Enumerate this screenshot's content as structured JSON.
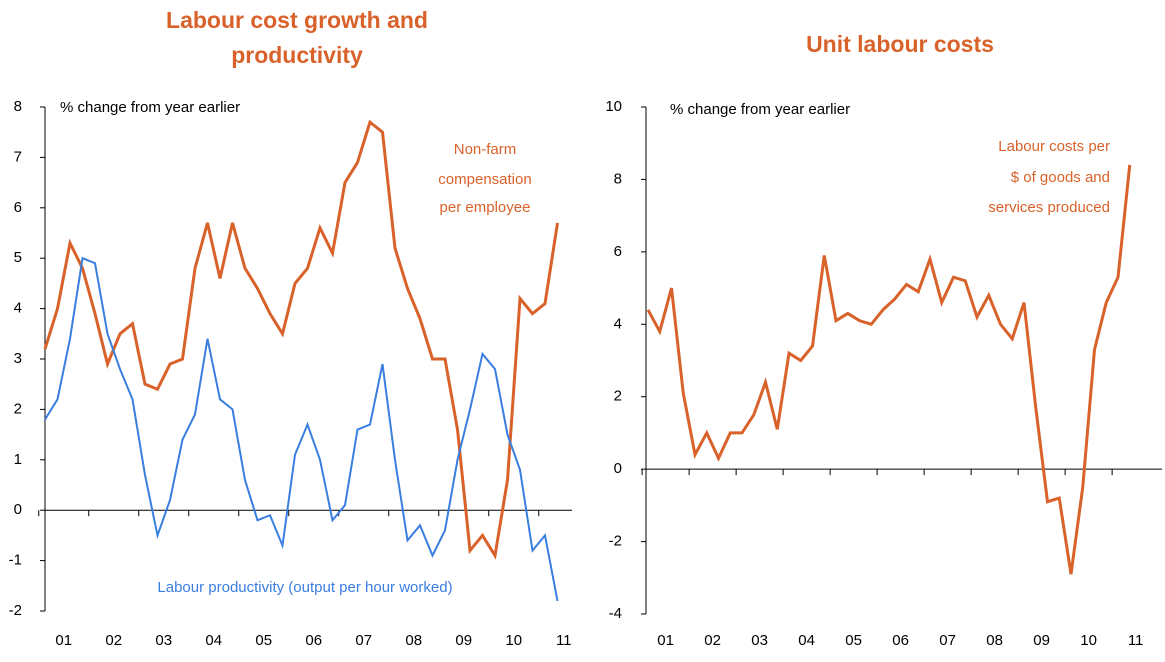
{
  "chart_data": [
    {
      "type": "line",
      "title": [
        "Labour  cost growth and",
        "productivity"
      ],
      "y_label": "% change from year earlier",
      "categories": [
        null,
        "01",
        null,
        null,
        null,
        "02",
        null,
        null,
        null,
        "03",
        null,
        null,
        null,
        "04",
        null,
        null,
        null,
        "05",
        null,
        null,
        null,
        "06",
        null,
        null,
        null,
        "07",
        null,
        null,
        null,
        "08",
        null,
        null,
        null,
        "09",
        null,
        null,
        null,
        "10",
        null,
        null,
        null,
        "11"
      ],
      "series": [
        {
          "label_lines": [
            "Non-farm",
            "compensation",
            "per employee"
          ],
          "color": "#d9622b",
          "values": [
            3.2,
            4.0,
            5.3,
            4.8,
            3.9,
            2.9,
            3.5,
            3.7,
            2.5,
            2.4,
            2.9,
            3.0,
            4.8,
            5.7,
            4.6,
            5.7,
            4.8,
            4.4,
            3.9,
            3.5,
            4.5,
            4.8,
            5.6,
            5.1,
            6.5,
            6.9,
            7.7,
            7.5,
            5.2,
            4.4,
            3.8,
            3.0,
            3.0,
            1.6,
            -0.8,
            -0.5,
            -0.9,
            0.6,
            4.2,
            3.9,
            4.1,
            5.7
          ]
        },
        {
          "label_lines": [
            "Labour productivity (output per hour worked)"
          ],
          "color": "#3a7ee0",
          "values": [
            1.8,
            2.2,
            3.4,
            5.0,
            4.9,
            3.5,
            2.8,
            2.2,
            0.7,
            -0.5,
            0.2,
            1.4,
            1.9,
            3.4,
            2.2,
            2.0,
            0.6,
            -0.2,
            -0.1,
            -0.7,
            1.1,
            1.7,
            1.0,
            -0.2,
            0.1,
            1.6,
            1.7,
            2.9,
            1.0,
            -0.6,
            -0.3,
            -0.9,
            -0.4,
            1.0,
            2.0,
            3.1,
            2.8,
            1.5,
            0.8,
            -0.8,
            -0.5,
            -1.8
          ]
        }
      ],
      "ylim": [
        -2,
        8
      ],
      "yticks": [
        -2,
        -1,
        0,
        1,
        2,
        3,
        4,
        5,
        6,
        7,
        8
      ]
    },
    {
      "type": "line",
      "title": [
        "Unit labour costs"
      ],
      "y_label": "% change from year earlier",
      "categories": [
        null,
        "01",
        null,
        null,
        null,
        "02",
        null,
        null,
        null,
        "03",
        null,
        null,
        null,
        "04",
        null,
        null,
        null,
        "05",
        null,
        null,
        null,
        "06",
        null,
        null,
        null,
        "07",
        null,
        null,
        null,
        "08",
        null,
        null,
        null,
        "09",
        null,
        null,
        null,
        "10",
        null,
        null,
        null,
        "11"
      ],
      "series": [
        {
          "label_lines": [
            "Labour costs per",
            "$ of goods and",
            "services produced"
          ],
          "color": "#d9622b",
          "values": [
            4.4,
            3.8,
            5.0,
            2.1,
            0.4,
            1.0,
            0.3,
            1.0,
            1.0,
            1.5,
            2.4,
            1.1,
            3.2,
            3.0,
            3.4,
            5.9,
            4.1,
            4.3,
            4.1,
            4.0,
            4.4,
            4.7,
            5.1,
            4.9,
            5.8,
            4.6,
            5.3,
            5.2,
            4.2,
            4.8,
            4.0,
            3.6,
            4.6,
            1.7,
            -0.9,
            -0.8,
            -2.9,
            -0.5,
            3.3,
            4.6,
            5.3,
            8.4
          ]
        }
      ],
      "ylim": [
        -4,
        10
      ],
      "yticks": [
        -4,
        -2,
        0,
        2,
        4,
        6,
        8,
        10
      ]
    }
  ]
}
